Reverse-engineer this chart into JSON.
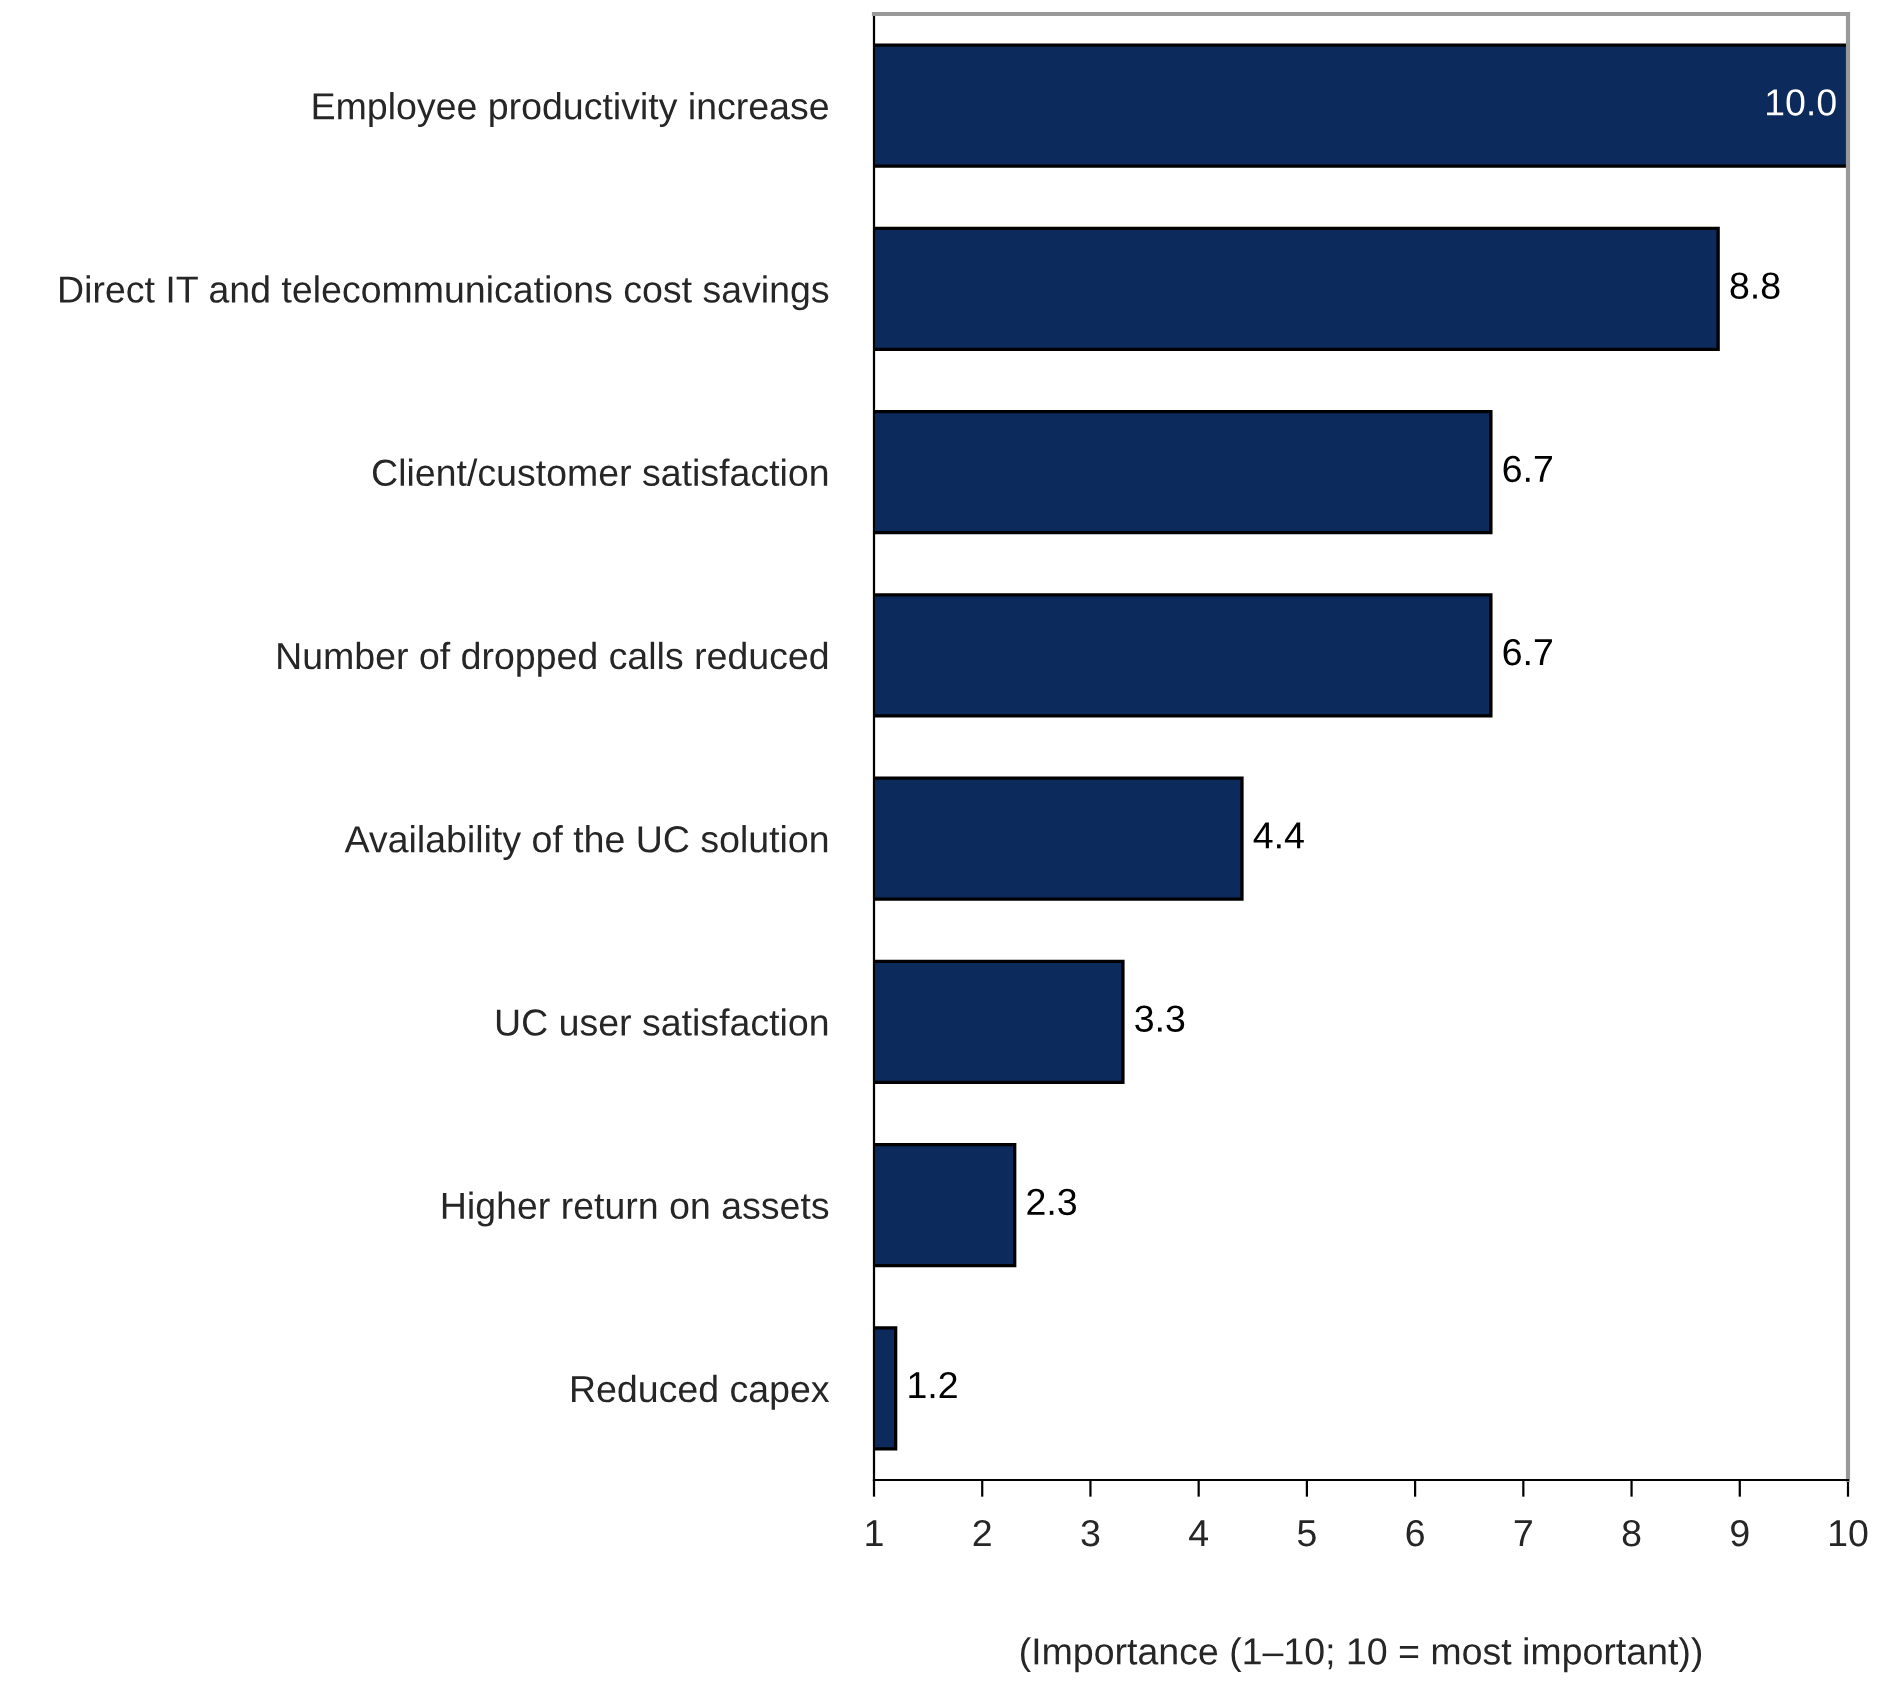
{
  "chart_data": {
    "type": "bar",
    "orientation": "horizontal",
    "xlabel": "(Importance (1–10; 10 = most important))",
    "categories": [
      "Employee productivity increase",
      "Direct IT and telecommunications cost savings",
      "Client/customer satisfaction",
      "Number of dropped calls reduced",
      "Availability of the UC solution",
      "UC user satisfaction",
      "Higher return on assets",
      "Reduced capex"
    ],
    "values": [
      10.0,
      8.8,
      6.7,
      6.7,
      4.4,
      3.3,
      2.3,
      1.2
    ],
    "color": "#0c2b5c",
    "xlim": [
      1,
      10
    ],
    "xticks": [
      1,
      2,
      3,
      4,
      5,
      6,
      7,
      8,
      9,
      10
    ],
    "value_labels": [
      "10.0",
      "8.8",
      "6.7",
      "6.7",
      "4.4",
      "3.3",
      "2.3",
      "1.2"
    ],
    "grid": false,
    "legend": false
  }
}
